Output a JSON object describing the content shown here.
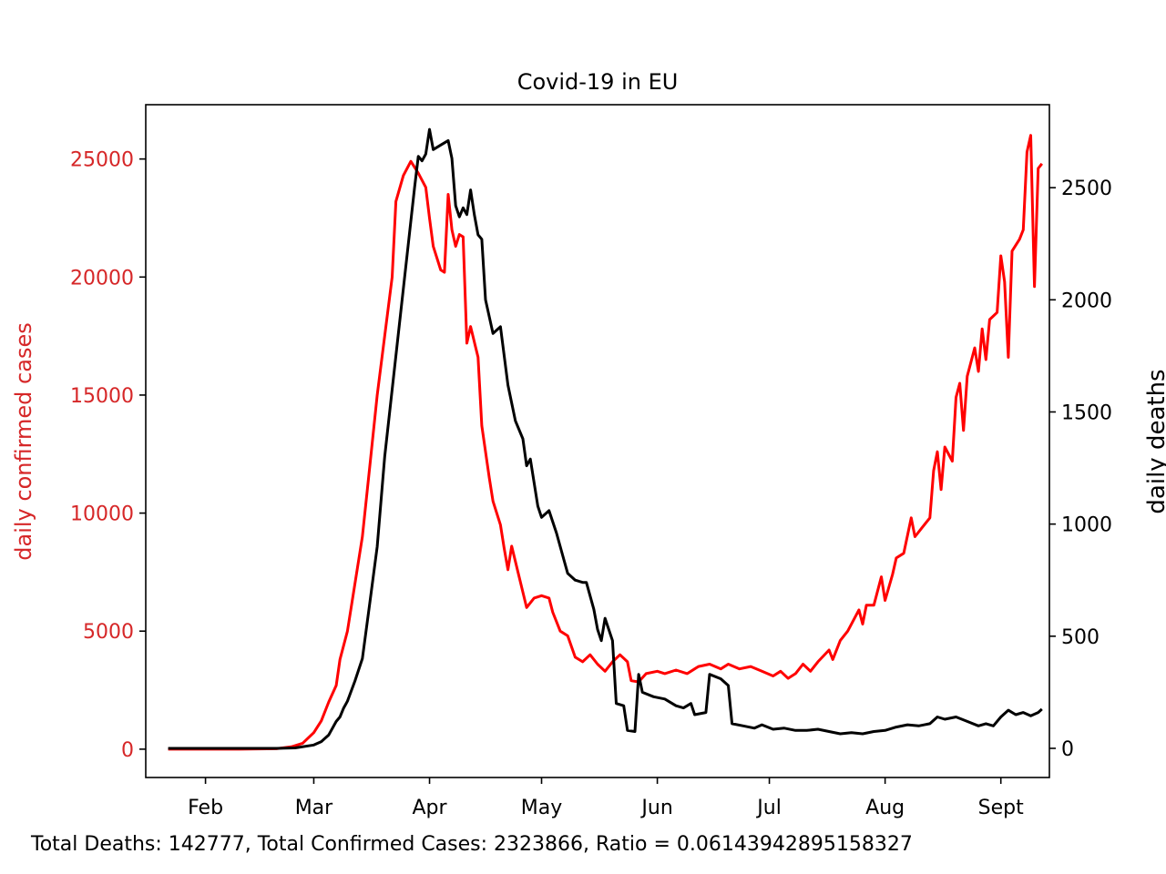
{
  "chart_data": {
    "type": "line",
    "title": "Covid-19 in EU",
    "x_ticks": [
      "Feb",
      "Mar",
      "Apr",
      "May",
      "Jun",
      "Jul",
      "Aug",
      "Sept"
    ],
    "x_range": [
      "2020-01-16",
      "2020-09-14"
    ],
    "left_axis": {
      "label": "daily confirmed cases",
      "range": [
        -1200,
        27300
      ],
      "ticks": [
        0,
        5000,
        10000,
        15000,
        20000,
        25000
      ],
      "color": "#d62728"
    },
    "right_axis": {
      "label": "daily deaths",
      "range": [
        -130,
        2870
      ],
      "ticks": [
        0,
        500,
        1000,
        1500,
        2000,
        2500
      ],
      "color": "#000000"
    },
    "series": [
      {
        "axis": "left",
        "color": "#ff0000",
        "points": [
          [
            "2020-01-22",
            0
          ],
          [
            "2020-02-01",
            0
          ],
          [
            "2020-02-10",
            0
          ],
          [
            "2020-02-20",
            20
          ],
          [
            "2020-02-24",
            100
          ],
          [
            "2020-02-27",
            250
          ],
          [
            "2020-03-01",
            700
          ],
          [
            "2020-03-03",
            1200
          ],
          [
            "2020-03-05",
            2000
          ],
          [
            "2020-03-07",
            2700
          ],
          [
            "2020-03-08",
            3800
          ],
          [
            "2020-03-10",
            5000
          ],
          [
            "2020-03-12",
            7000
          ],
          [
            "2020-03-14",
            9000
          ],
          [
            "2020-03-16",
            12000
          ],
          [
            "2020-03-18",
            15000
          ],
          [
            "2020-03-20",
            17500
          ],
          [
            "2020-03-22",
            20000
          ],
          [
            "2020-03-23",
            23200
          ],
          [
            "2020-03-25",
            24300
          ],
          [
            "2020-03-27",
            24900
          ],
          [
            "2020-03-29",
            24400
          ],
          [
            "2020-03-31",
            23800
          ],
          [
            "2020-04-01",
            22500
          ],
          [
            "2020-04-02",
            21300
          ],
          [
            "2020-04-04",
            20300
          ],
          [
            "2020-04-05",
            20200
          ],
          [
            "2020-04-06",
            23500
          ],
          [
            "2020-04-07",
            22000
          ],
          [
            "2020-04-08",
            21300
          ],
          [
            "2020-04-09",
            21800
          ],
          [
            "2020-04-10",
            21700
          ],
          [
            "2020-04-11",
            17200
          ],
          [
            "2020-04-12",
            17900
          ],
          [
            "2020-04-14",
            16600
          ],
          [
            "2020-04-15",
            13700
          ],
          [
            "2020-04-17",
            11500
          ],
          [
            "2020-04-18",
            10500
          ],
          [
            "2020-04-20",
            9500
          ],
          [
            "2020-04-21",
            8500
          ],
          [
            "2020-04-22",
            7600
          ],
          [
            "2020-04-23",
            8600
          ],
          [
            "2020-04-25",
            7300
          ],
          [
            "2020-04-27",
            6000
          ],
          [
            "2020-04-29",
            6400
          ],
          [
            "2020-05-01",
            6500
          ],
          [
            "2020-05-03",
            6400
          ],
          [
            "2020-05-04",
            5800
          ],
          [
            "2020-05-06",
            5000
          ],
          [
            "2020-05-08",
            4800
          ],
          [
            "2020-05-10",
            3900
          ],
          [
            "2020-05-12",
            3700
          ],
          [
            "2020-05-14",
            4000
          ],
          [
            "2020-05-16",
            3600
          ],
          [
            "2020-05-18",
            3300
          ],
          [
            "2020-05-20",
            3700
          ],
          [
            "2020-05-22",
            4000
          ],
          [
            "2020-05-24",
            3700
          ],
          [
            "2020-05-25",
            2900
          ],
          [
            "2020-05-27",
            2850
          ],
          [
            "2020-05-29",
            3200
          ],
          [
            "2020-06-01",
            3300
          ],
          [
            "2020-06-03",
            3200
          ],
          [
            "2020-06-06",
            3350
          ],
          [
            "2020-06-09",
            3200
          ],
          [
            "2020-06-12",
            3500
          ],
          [
            "2020-06-15",
            3600
          ],
          [
            "2020-06-18",
            3400
          ],
          [
            "2020-06-20",
            3600
          ],
          [
            "2020-06-23",
            3400
          ],
          [
            "2020-06-26",
            3500
          ],
          [
            "2020-06-29",
            3300
          ],
          [
            "2020-07-02",
            3100
          ],
          [
            "2020-07-04",
            3300
          ],
          [
            "2020-07-06",
            3000
          ],
          [
            "2020-07-08",
            3200
          ],
          [
            "2020-07-10",
            3600
          ],
          [
            "2020-07-12",
            3300
          ],
          [
            "2020-07-14",
            3700
          ],
          [
            "2020-07-17",
            4200
          ],
          [
            "2020-07-18",
            3800
          ],
          [
            "2020-07-20",
            4600
          ],
          [
            "2020-07-22",
            5000
          ],
          [
            "2020-07-25",
            5900
          ],
          [
            "2020-07-26",
            5300
          ],
          [
            "2020-07-27",
            6100
          ],
          [
            "2020-07-29",
            6100
          ],
          [
            "2020-07-31",
            7300
          ],
          [
            "2020-08-01",
            6300
          ],
          [
            "2020-08-03",
            7400
          ],
          [
            "2020-08-04",
            8100
          ],
          [
            "2020-08-06",
            8300
          ],
          [
            "2020-08-08",
            9800
          ],
          [
            "2020-08-09",
            9000
          ],
          [
            "2020-08-11",
            9400
          ],
          [
            "2020-08-13",
            9800
          ],
          [
            "2020-08-14",
            11800
          ],
          [
            "2020-08-15",
            12600
          ],
          [
            "2020-08-16",
            11000
          ],
          [
            "2020-08-17",
            12800
          ],
          [
            "2020-08-19",
            12200
          ],
          [
            "2020-08-20",
            14900
          ],
          [
            "2020-08-21",
            15500
          ],
          [
            "2020-08-22",
            13500
          ],
          [
            "2020-08-23",
            15800
          ],
          [
            "2020-08-25",
            17000
          ],
          [
            "2020-08-26",
            16000
          ],
          [
            "2020-08-27",
            17800
          ],
          [
            "2020-08-28",
            16500
          ],
          [
            "2020-08-29",
            18200
          ],
          [
            "2020-08-31",
            18500
          ],
          [
            "2020-09-01",
            20900
          ],
          [
            "2020-09-02",
            19800
          ],
          [
            "2020-09-03",
            16600
          ],
          [
            "2020-09-04",
            21100
          ],
          [
            "2020-09-06",
            21600
          ],
          [
            "2020-09-07",
            22000
          ],
          [
            "2020-09-08",
            25300
          ],
          [
            "2020-09-09",
            26000
          ],
          [
            "2020-09-10",
            19600
          ],
          [
            "2020-09-11",
            24600
          ],
          [
            "2020-09-12",
            24800
          ]
        ]
      },
      {
        "axis": "right",
        "color": "#000000",
        "points": [
          [
            "2020-01-22",
            0
          ],
          [
            "2020-02-10",
            0
          ],
          [
            "2020-02-20",
            0
          ],
          [
            "2020-02-25",
            2
          ],
          [
            "2020-03-01",
            15
          ],
          [
            "2020-03-03",
            30
          ],
          [
            "2020-03-05",
            60
          ],
          [
            "2020-03-07",
            120
          ],
          [
            "2020-03-08",
            140
          ],
          [
            "2020-03-09",
            180
          ],
          [
            "2020-03-10",
            210
          ],
          [
            "2020-03-12",
            300
          ],
          [
            "2020-03-14",
            400
          ],
          [
            "2020-03-16",
            650
          ],
          [
            "2020-03-18",
            900
          ],
          [
            "2020-03-20",
            1300
          ],
          [
            "2020-03-22",
            1600
          ],
          [
            "2020-03-24",
            1900
          ],
          [
            "2020-03-26",
            2200
          ],
          [
            "2020-03-28",
            2500
          ],
          [
            "2020-03-29",
            2640
          ],
          [
            "2020-03-30",
            2620
          ],
          [
            "2020-03-31",
            2650
          ],
          [
            "2020-04-01",
            2760
          ],
          [
            "2020-04-02",
            2670
          ],
          [
            "2020-04-04",
            2690
          ],
          [
            "2020-04-06",
            2710
          ],
          [
            "2020-04-07",
            2630
          ],
          [
            "2020-04-08",
            2420
          ],
          [
            "2020-04-09",
            2370
          ],
          [
            "2020-04-10",
            2410
          ],
          [
            "2020-04-11",
            2380
          ],
          [
            "2020-04-12",
            2490
          ],
          [
            "2020-04-13",
            2380
          ],
          [
            "2020-04-14",
            2290
          ],
          [
            "2020-04-15",
            2270
          ],
          [
            "2020-04-16",
            2000
          ],
          [
            "2020-04-18",
            1850
          ],
          [
            "2020-04-20",
            1880
          ],
          [
            "2020-04-22",
            1620
          ],
          [
            "2020-04-24",
            1460
          ],
          [
            "2020-04-26",
            1380
          ],
          [
            "2020-04-27",
            1260
          ],
          [
            "2020-04-28",
            1290
          ],
          [
            "2020-04-30",
            1080
          ],
          [
            "2020-05-01",
            1030
          ],
          [
            "2020-05-03",
            1060
          ],
          [
            "2020-05-05",
            960
          ],
          [
            "2020-05-07",
            840
          ],
          [
            "2020-05-08",
            780
          ],
          [
            "2020-05-10",
            750
          ],
          [
            "2020-05-12",
            740
          ],
          [
            "2020-05-13",
            740
          ],
          [
            "2020-05-15",
            620
          ],
          [
            "2020-05-16",
            530
          ],
          [
            "2020-05-17",
            480
          ],
          [
            "2020-05-18",
            580
          ],
          [
            "2020-05-20",
            480
          ],
          [
            "2020-05-21",
            200
          ],
          [
            "2020-05-23",
            190
          ],
          [
            "2020-05-24",
            80
          ],
          [
            "2020-05-26",
            75
          ],
          [
            "2020-05-27",
            330
          ],
          [
            "2020-05-28",
            250
          ],
          [
            "2020-05-31",
            230
          ],
          [
            "2020-06-03",
            220
          ],
          [
            "2020-06-06",
            190
          ],
          [
            "2020-06-08",
            180
          ],
          [
            "2020-06-10",
            200
          ],
          [
            "2020-06-11",
            150
          ],
          [
            "2020-06-14",
            160
          ],
          [
            "2020-06-15",
            330
          ],
          [
            "2020-06-18",
            310
          ],
          [
            "2020-06-20",
            280
          ],
          [
            "2020-06-21",
            110
          ],
          [
            "2020-06-24",
            100
          ],
          [
            "2020-06-27",
            90
          ],
          [
            "2020-06-29",
            105
          ],
          [
            "2020-07-02",
            85
          ],
          [
            "2020-07-05",
            90
          ],
          [
            "2020-07-08",
            80
          ],
          [
            "2020-07-11",
            80
          ],
          [
            "2020-07-14",
            85
          ],
          [
            "2020-07-17",
            75
          ],
          [
            "2020-07-20",
            65
          ],
          [
            "2020-07-23",
            70
          ],
          [
            "2020-07-26",
            65
          ],
          [
            "2020-07-29",
            75
          ],
          [
            "2020-08-01",
            80
          ],
          [
            "2020-08-04",
            95
          ],
          [
            "2020-08-07",
            105
          ],
          [
            "2020-08-10",
            100
          ],
          [
            "2020-08-13",
            110
          ],
          [
            "2020-08-15",
            140
          ],
          [
            "2020-08-17",
            130
          ],
          [
            "2020-08-20",
            140
          ],
          [
            "2020-08-23",
            120
          ],
          [
            "2020-08-26",
            100
          ],
          [
            "2020-08-28",
            110
          ],
          [
            "2020-08-30",
            100
          ],
          [
            "2020-09-01",
            140
          ],
          [
            "2020-09-03",
            170
          ],
          [
            "2020-09-05",
            150
          ],
          [
            "2020-09-07",
            160
          ],
          [
            "2020-09-09",
            145
          ],
          [
            "2020-09-11",
            160
          ],
          [
            "2020-09-12",
            175
          ]
        ]
      }
    ]
  },
  "footer": {
    "summary": "Total Deaths: 142777,  Total Confirmed Cases: 2323866,   Ratio = 0.06143942895158327"
  }
}
